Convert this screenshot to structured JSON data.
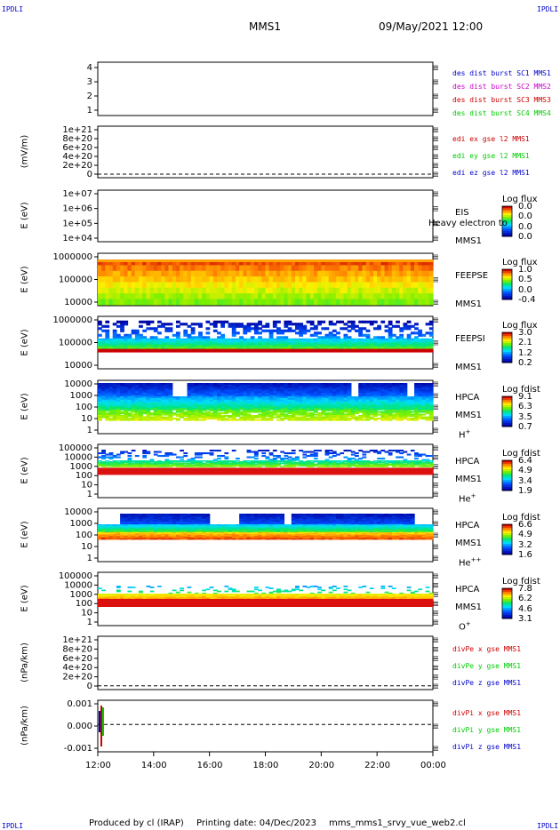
{
  "corners": {
    "tl": "IPDLI",
    "tr": "IPDLI",
    "bl": "IPDLI",
    "br": "IPDLI"
  },
  "header": {
    "mission": "MMS1",
    "datetime": "09/May/2021 12:00"
  },
  "footer": {
    "credit": "Produced by cl (IRAP)",
    "printed": "Printing date: 04/Dec/2023",
    "file": "mms_mms1_srvy_vue_web2.cl"
  },
  "colors": {
    "red": "#cc0000",
    "green": "#00cc00",
    "blue": "#0000cc",
    "magenta": "#cc00cc"
  },
  "chart_data": {
    "type": "heatmap",
    "x_ticks": [
      "12:00",
      "14:00",
      "16:00",
      "18:00",
      "20:00",
      "22:00",
      "00:00"
    ],
    "panels": [
      {
        "id": "p1",
        "yticks": [
          "4",
          "3",
          "2",
          "1"
        ],
        "ylabel": "",
        "legend": [
          {
            "text": "des dist burst SC1 MMS1",
            "color": "#0000cc"
          },
          {
            "text": "des dist burst SC2 MMS2",
            "color": "#cc00cc"
          },
          {
            "text": "des dist burst SC3 MMS3",
            "color": "#cc0000"
          },
          {
            "text": "des dist burst SC4 MMS4",
            "color": "#00cc00"
          }
        ]
      },
      {
        "id": "p2",
        "yticks": [
          "1e+21",
          "8e+20",
          "6e+20",
          "4e+20",
          "2e+20",
          "0"
        ],
        "ylabel": "(mV/m)",
        "legend": [
          {
            "text": "edi ex gse l2 MMS1",
            "color": "#cc0000"
          },
          {
            "text": "edi ey gse l2 MMS1",
            "color": "#00cc00"
          },
          {
            "text": "edi ez gse l2 MMS1",
            "color": "#0000cc"
          }
        ]
      },
      {
        "id": "p3",
        "yticks": [
          "1e+07",
          "1e+06",
          "1e+05",
          "1e+04"
        ],
        "ylabel": "E (eV)",
        "labels": [
          "EIS",
          "MMS1"
        ],
        "overlap": "Heavy electron to",
        "cb_title": "Log flux",
        "cb_vals": [
          "0.0",
          "0.0",
          "0.0",
          "0.0"
        ]
      },
      {
        "id": "p4",
        "yticks": [
          "1000000",
          "100000",
          "10000"
        ],
        "ylabel": "E (eV)",
        "labels": [
          "FEEPSE",
          "MMS1"
        ],
        "cb_title": "Log flux",
        "cb_vals": [
          "1.0",
          "0.5",
          "0.0",
          "-0.4"
        ]
      },
      {
        "id": "p5",
        "yticks": [
          "1000000",
          "100000",
          "10000"
        ],
        "ylabel": "E (eV)",
        "labels": [
          "FEEPSI",
          "MMS1"
        ],
        "cb_title": "Log flux",
        "cb_vals": [
          "3.0",
          "2.1",
          "1.2",
          "0.2"
        ]
      },
      {
        "id": "p6",
        "yticks": [
          "10000",
          "1000",
          "100",
          "10",
          "1"
        ],
        "ylabel": "E (eV)",
        "labels": [
          "HPCA",
          "MMS1"
        ],
        "species": "H",
        "sup": "+",
        "cb_title": "Log fdist",
        "cb_vals": [
          "9.1",
          "6.3",
          "3.5",
          "0.7"
        ]
      },
      {
        "id": "p7",
        "yticks": [
          "100000",
          "10000",
          "1000",
          "100",
          "10",
          "1"
        ],
        "ylabel": "E (eV)",
        "labels": [
          "HPCA",
          "MMS1"
        ],
        "species": "He",
        "sup": "+",
        "cb_title": "Log fdist",
        "cb_vals": [
          "6.4",
          "4.9",
          "3.4",
          "1.9"
        ]
      },
      {
        "id": "p8",
        "yticks": [
          "10000",
          "1000",
          "100",
          "10",
          "1"
        ],
        "ylabel": "E (eV)",
        "labels": [
          "HPCA",
          "MMS1"
        ],
        "species": "He",
        "sup": "++",
        "cb_title": "Log fdist",
        "cb_vals": [
          "6.6",
          "4.9",
          "3.2",
          "1.6"
        ]
      },
      {
        "id": "p9",
        "yticks": [
          "100000",
          "10000",
          "1000",
          "100",
          "10",
          "1"
        ],
        "ylabel": "E (eV)",
        "labels": [
          "HPCA",
          "MMS1"
        ],
        "species": "O",
        "sup": "+",
        "cb_title": "Log fdist",
        "cb_vals": [
          "7.8",
          "6.2",
          "4.6",
          "3.1"
        ]
      },
      {
        "id": "p10",
        "yticks": [
          "1e+21",
          "8e+20",
          "6e+20",
          "4e+20",
          "2e+20",
          "0"
        ],
        "ylabel": "(nPa/km)",
        "legend": [
          {
            "text": "divPe x gse MMS1",
            "color": "#cc0000"
          },
          {
            "text": "divPe y gse MMS1",
            "color": "#00cc00"
          },
          {
            "text": "divPe z gse MMS1",
            "color": "#0000cc"
          }
        ]
      },
      {
        "id": "p11",
        "yticks": [
          "0.001",
          "0.000",
          "-0.001"
        ],
        "ylabel": "(nPa/km)",
        "legend": [
          {
            "text": "divPi x gse MMS1",
            "color": "#cc0000"
          },
          {
            "text": "divPi y gse MMS1",
            "color": "#00cc00"
          },
          {
            "text": "divPi z gse MMS1",
            "color": "#0000cc"
          }
        ]
      }
    ]
  }
}
